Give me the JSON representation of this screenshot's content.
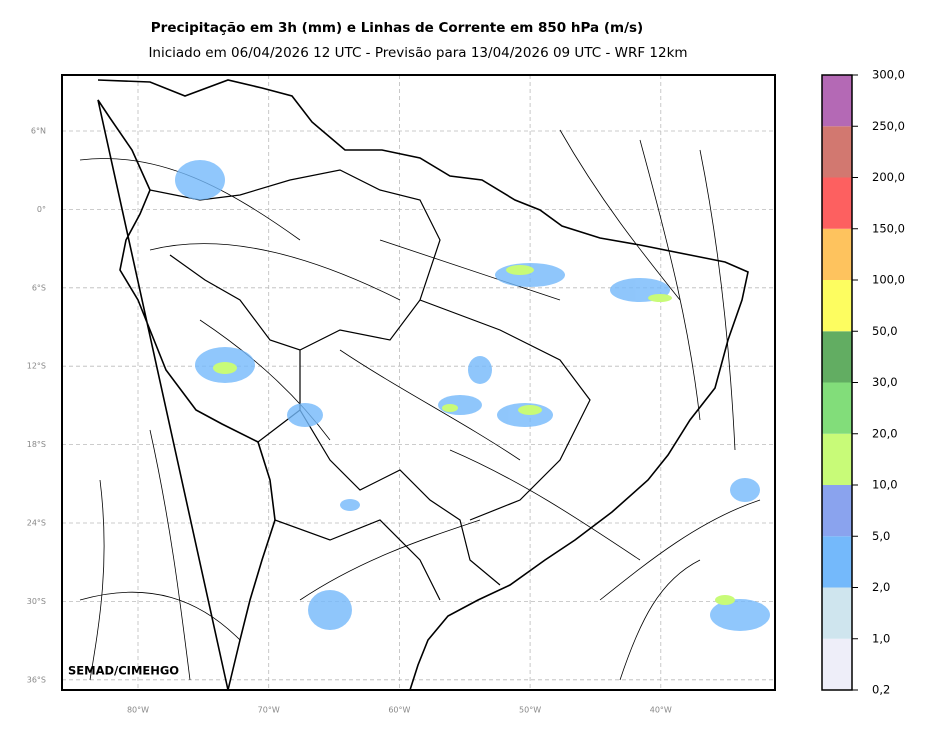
{
  "header": {
    "title": "Precipitação em 3h (mm) e Linhas de Corrente em 850 hPa (m/s)",
    "subtitle": "Iniciado em 06/04/2026 12 UTC - Previsão para 13/04/2026 09 UTC - WRF 12km"
  },
  "map": {
    "lat_labels": [
      "6°N",
      "0°",
      "6°S",
      "12°S",
      "18°S",
      "24°S",
      "30°S",
      "36°S"
    ],
    "lon_labels": [
      "80°W",
      "70°W",
      "60°W",
      "50°W",
      "40°W"
    ],
    "credit": "SEMAD/CIMEHGO"
  },
  "colorbar": {
    "labels": [
      "0,2",
      "1,0",
      "2,0",
      "5,0",
      "10,0",
      "20,0",
      "30,0",
      "50,0",
      "100,0",
      "150,0",
      "200,0",
      "250,0",
      "300,0"
    ],
    "colors": [
      "#eeeef9",
      "#cfe5ee",
      "#74b9fb",
      "#8aa3ee",
      "#c8fb78",
      "#82dd7a",
      "#62ad62",
      "#fdfd60",
      "#fec35e",
      "#fd6060",
      "#d27870",
      "#b469b5"
    ]
  }
}
